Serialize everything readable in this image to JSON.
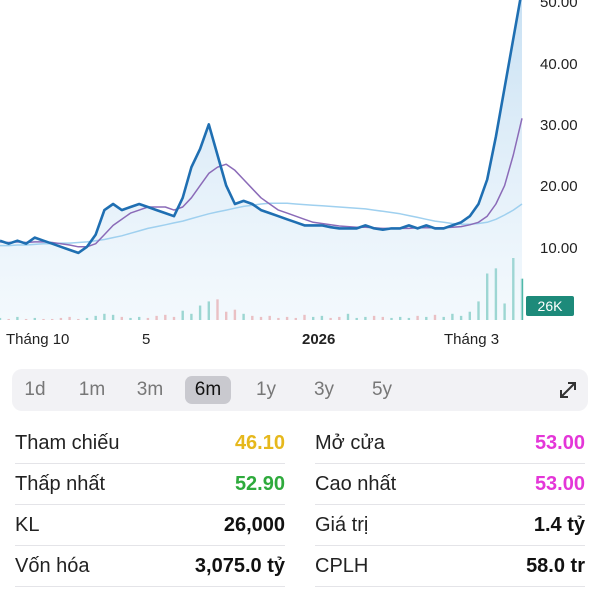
{
  "chart_data": {
    "type": "line",
    "y_ticks": [
      "50.00",
      "40.00",
      "30.00",
      "20.00",
      "10.00"
    ],
    "x_ticks": [
      {
        "label": "Tháng 10",
        "bold": false
      },
      {
        "label": "5",
        "bold": false
      },
      {
        "label": "2026",
        "bold": true
      },
      {
        "label": "Tháng 3",
        "bold": false
      }
    ],
    "ylim": [
      0,
      52
    ],
    "series": [
      {
        "color": "#1f6fb2",
        "values": [
          11,
          10.5,
          11,
          10.5,
          11.5,
          11,
          10.5,
          10,
          9.5,
          9,
          10,
          12,
          16,
          17,
          16,
          16.5,
          17,
          16.5,
          16,
          15.5,
          15,
          18,
          23,
          26,
          30,
          25,
          20,
          17,
          17.5,
          17,
          16,
          15.5,
          15,
          14.5,
          14,
          13.5,
          13.5,
          13.5,
          13.2,
          13,
          13,
          13,
          13.5,
          13,
          12.8,
          13,
          13,
          13.5,
          13,
          13.5,
          13,
          13,
          13.5,
          14,
          15,
          17,
          21,
          28,
          36,
          44,
          52
        ]
      },
      {
        "color": "#8b6bb8",
        "values": [
          10.8,
          10.7,
          10.8,
          10.7,
          10.8,
          10.8,
          10.7,
          10.5,
          10.3,
          10,
          10,
          10.5,
          12,
          13.5,
          14.5,
          15.5,
          16,
          16.5,
          16.5,
          16.5,
          16,
          16.5,
          18,
          20,
          22,
          23,
          23.5,
          22.5,
          21,
          19.5,
          18,
          17,
          16,
          15.5,
          15,
          14.5,
          14,
          13.8,
          13.6,
          13.4,
          13.3,
          13.2,
          13.2,
          13.1,
          13,
          13,
          13,
          13,
          13.1,
          13.1,
          13.1,
          13.1,
          13.2,
          13.3,
          13.6,
          14,
          15,
          17,
          20,
          25,
          31
        ]
      },
      {
        "color": "#9fd0ef",
        "values": [
          10.2,
          10.2,
          10.3,
          10.3,
          10.4,
          10.5,
          10.5,
          10.6,
          10.6,
          10.7,
          10.8,
          11,
          11.2,
          11.5,
          11.8,
          12.2,
          12.6,
          13,
          13.3,
          13.6,
          13.9,
          14.2,
          14.6,
          15,
          15.4,
          15.7,
          16,
          16.3,
          16.6,
          16.8,
          17,
          17.1,
          17.1,
          17.1,
          17,
          16.9,
          16.8,
          16.7,
          16.6,
          16.5,
          16.4,
          16.3,
          16.2,
          16,
          15.8,
          15.6,
          15.4,
          15.1,
          14.8,
          14.5,
          14.2,
          14,
          13.8,
          13.7,
          13.7,
          13.8,
          14,
          14.5,
          15.2,
          16,
          17
        ]
      }
    ],
    "volume": [
      2,
      1,
      3,
      1,
      2,
      1,
      1,
      2,
      3,
      1,
      2,
      4,
      6,
      5,
      3,
      2,
      3,
      2,
      4,
      5,
      3,
      9,
      6,
      14,
      18,
      20,
      8,
      10,
      6,
      4,
      3,
      4,
      2,
      3,
      2,
      5,
      3,
      4,
      2,
      3,
      6,
      2,
      3,
      4,
      3,
      2,
      3,
      2,
      4,
      3,
      5,
      3,
      6,
      4,
      8,
      18,
      45,
      50,
      16,
      60,
      40
    ],
    "volume_label": "26K"
  },
  "range_tabs": [
    {
      "label": "1d",
      "active": false
    },
    {
      "label": "1m",
      "active": false
    },
    {
      "label": "3m",
      "active": false
    },
    {
      "label": "6m",
      "active": true
    },
    {
      "label": "1y",
      "active": false
    },
    {
      "label": "3y",
      "active": false
    },
    {
      "label": "5y",
      "active": false
    }
  ],
  "stats": [
    {
      "left_label": "Tham chiếu",
      "left_value": "46.10",
      "left_color": "#e6b81c",
      "right_label": "Mở cửa",
      "right_value": "53.00",
      "right_color": "#e436d8"
    },
    {
      "left_label": "Thấp nhất",
      "left_value": "52.90",
      "left_color": "#2eaa3c",
      "right_label": "Cao nhất",
      "right_value": "53.00",
      "right_color": "#e436d8"
    },
    {
      "left_label": "KL",
      "left_value": "26,000",
      "left_color": "#111111",
      "right_label": "Giá trị",
      "right_value": "1.4 tỷ",
      "right_color": "#111111"
    },
    {
      "left_label": "Vốn hóa",
      "left_value": "3,075.0 tỷ",
      "left_color": "#111111",
      "right_label": "CPLH",
      "right_value": "58.0 tr",
      "right_color": "#111111"
    }
  ]
}
